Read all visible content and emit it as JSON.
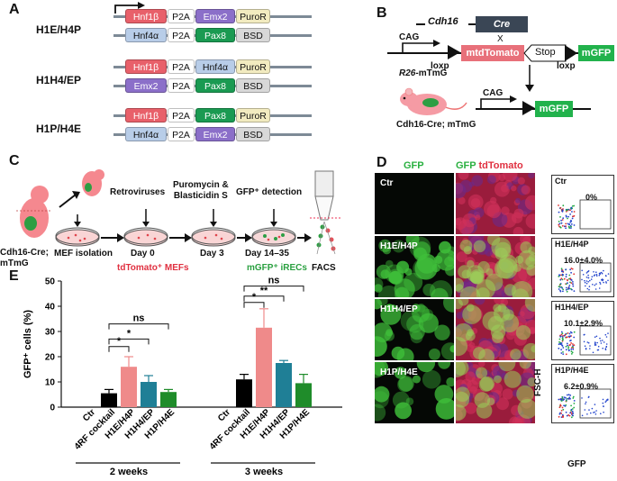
{
  "panels": {
    "a": "A",
    "b": "B",
    "c": "C",
    "d": "D",
    "e": "E"
  },
  "panelA": {
    "constructs": [
      {
        "name": "H1E/H4P",
        "row1": [
          "Hnf1β",
          "P2A",
          "Emx2",
          "PuroR"
        ],
        "row2": [
          "Hnf4α",
          "P2A",
          "Pax8",
          "BSD"
        ]
      },
      {
        "name": "H1H4/EP",
        "row1": [
          "Hnf1β",
          "P2A",
          "Hnf4α",
          "PuroR"
        ],
        "row2": [
          "Emx2",
          "P2A",
          "Pax8",
          "BSD"
        ]
      },
      {
        "name": "H1P/H4E",
        "row1": [
          "Hnf1β",
          "P2A",
          "Pax8",
          "PuroR"
        ],
        "row2": [
          "Hnf4α",
          "P2A",
          "Emx2",
          "BSD"
        ]
      }
    ],
    "colors": {
      "Hnf1β": "#e8606a",
      "P2A": "#ffffff",
      "Emx2": "#8b6fc9",
      "PuroR": "#f2ebc0",
      "Hnf4α": "#b8cde8",
      "Pax8": "#1a9a52",
      "BSD": "#d8d8d8"
    }
  },
  "panelB": {
    "cdh16": "Cdh16",
    "cre": "Cre",
    "cag1": "CAG",
    "loxp1": "loxp",
    "mtd": "mtdTomato",
    "stop": "Stop",
    "loxp2": "loxp",
    "mgfp1": "mGFP",
    "x": "X",
    "r26_prefix": "R26",
    "r26_suffix": "-mTmG",
    "mouse_label": "Cdh16-Cre; mTmG",
    "cag2": "CAG",
    "mgfp2": "mGFP"
  },
  "panelC": {
    "mouse_label": "Cdh16-Cre;\nmTmG",
    "step_mef": "MEF isolation",
    "step_retro": "Retroviruses",
    "day0": "Day 0",
    "step_puro": "Puromycin &\nBlasticidin S",
    "day3": "Day 3",
    "step_gfp": "GFP⁺ detection",
    "day14": "Day 14–35",
    "tdtomato_mefs": "tdTomato⁺ MEFs",
    "mgfp_irecs": "mGFP⁺ iRECs",
    "facs": "FACS"
  },
  "panelD": {
    "col_gfp": "GFP",
    "col_gfp2": "GFP",
    "col_td": "tdTomato",
    "rows": [
      {
        "label": "Ctr",
        "facs_label": "Ctr",
        "pct": "0%",
        "gfp": 0
      },
      {
        "label": "H1E/H4P",
        "facs_label": "H1E/H4P",
        "pct": "16.0±4.0%",
        "gfp": 0.9
      },
      {
        "label": "H1H4/EP",
        "facs_label": "H1H4/EP",
        "pct": "10.1±2.9%",
        "gfp": 0.6
      },
      {
        "label": "H1P/H4E",
        "facs_label": "H1P/H4E",
        "pct": "6.2±0.9%",
        "gfp": 0.45
      }
    ],
    "yaxis": "FSC-H",
    "xaxis": "GFP"
  },
  "chart_data": {
    "type": "bar",
    "ylabel": "GFP⁺ cells (%)",
    "ylim": [
      0,
      50
    ],
    "yticks": [
      0,
      10,
      20,
      30,
      40,
      50
    ],
    "groups": [
      {
        "name": "2  weeks",
        "categories": [
          "Ctr",
          "4RF cocktail",
          "H1E/H4P",
          "H1H4/EP",
          "H1P/H4E"
        ],
        "values": [
          0,
          5.5,
          16,
          10,
          6
        ],
        "errors": [
          0,
          1.5,
          4,
          2.5,
          1
        ]
      },
      {
        "name": "3  weeks",
        "categories": [
          "Ctr",
          "4RF cocktail",
          "H1E/H4P",
          "H1H4/EP",
          "H1P/H4E"
        ],
        "values": [
          0,
          11,
          31.5,
          17.5,
          9.5
        ],
        "errors": [
          0,
          2,
          7.5,
          1,
          3.5
        ]
      }
    ],
    "bar_colors": [
      "#000000",
      "#000000",
      "#ef8a8a",
      "#1f7f96",
      "#1f8c2a"
    ],
    "sig_2w": [
      {
        "from": 1,
        "to": 2,
        "label": "*"
      },
      {
        "from": 1,
        "to": 3,
        "label": "*"
      },
      {
        "from": 1,
        "to": 4,
        "label": "ns"
      }
    ],
    "sig_3w": [
      {
        "from": 1,
        "to": 2,
        "label": "*"
      },
      {
        "from": 1,
        "to": 3,
        "label": "**"
      },
      {
        "from": 1,
        "to": 4,
        "label": "ns"
      }
    ]
  }
}
